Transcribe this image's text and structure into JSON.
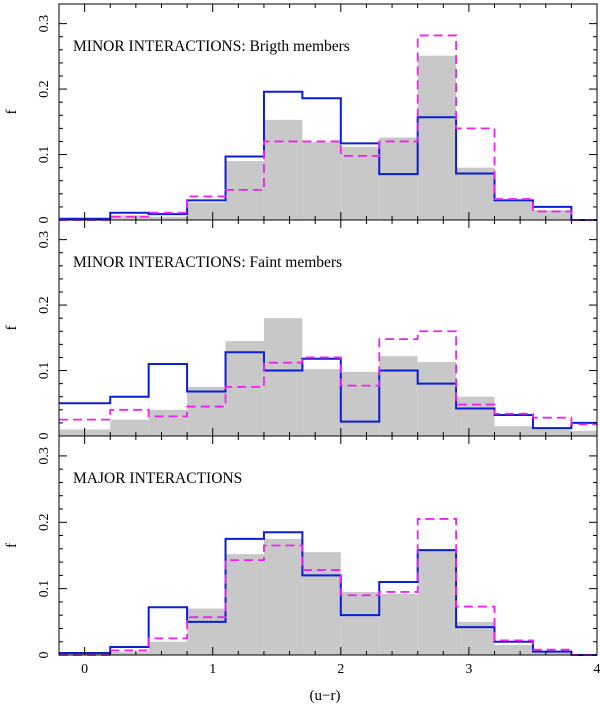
{
  "chart_data": {
    "type": "histogram",
    "xlabel": "(u−r)",
    "ylabel": "f",
    "xlim": [
      -0.2,
      4.0
    ],
    "ylim": [
      0,
      0.33
    ],
    "x_ticks": [
      0,
      1,
      2,
      3,
      4
    ],
    "y_ticks": [
      0,
      0.1,
      0.2,
      0.3
    ],
    "y_tick_labels": [
      "0",
      "0.1",
      "0.2",
      "0.3"
    ],
    "bin_edges": [
      -0.2,
      0.2,
      0.5,
      0.8,
      1.1,
      1.4,
      1.7,
      2.0,
      2.3,
      2.6,
      2.9,
      3.2,
      3.5,
      3.8,
      4.0
    ],
    "series_styles": [
      {
        "name": "gray-filled",
        "style": "filled",
        "color": "#c8c8c8"
      },
      {
        "name": "blue-solid",
        "style": "solid",
        "color": "#0a1ed2"
      },
      {
        "name": "magenta-dashed",
        "style": "dashed",
        "color": "#f020f0"
      }
    ],
    "panels": [
      {
        "title": "MINOR INTERACTIONS: Brigth members",
        "series": [
          {
            "name": "gray-filled",
            "values": [
              0.002,
              0.007,
              0.005,
              0.027,
              0.09,
              0.153,
              0.119,
              0.112,
              0.126,
              0.251,
              0.08,
              0.028,
              0.015,
              0.0
            ]
          },
          {
            "name": "blue-solid",
            "values": [
              0.002,
              0.011,
              0.009,
              0.03,
              0.097,
              0.196,
              0.186,
              0.117,
              0.07,
              0.157,
              0.071,
              0.03,
              0.02,
              0.0
            ]
          },
          {
            "name": "magenta-dashed",
            "values": [
              0.0,
              0.005,
              0.011,
              0.036,
              0.046,
              0.12,
              0.12,
              0.098,
              0.12,
              0.282,
              0.14,
              0.032,
              0.013,
              0.0
            ]
          }
        ]
      },
      {
        "title": "MINOR INTERACTIONS: Faint members",
        "series": [
          {
            "name": "gray-filled",
            "values": [
              0.01,
              0.025,
              0.04,
              0.075,
              0.145,
              0.18,
              0.102,
              0.098,
              0.122,
              0.113,
              0.06,
              0.015,
              0.01,
              0.008
            ]
          },
          {
            "name": "blue-solid",
            "values": [
              0.05,
              0.06,
              0.11,
              0.068,
              0.128,
              0.1,
              0.118,
              0.022,
              0.1,
              0.08,
              0.042,
              0.032,
              0.012,
              0.02
            ]
          },
          {
            "name": "magenta-dashed",
            "values": [
              0.025,
              0.04,
              0.03,
              0.045,
              0.075,
              0.112,
              0.12,
              0.077,
              0.148,
              0.16,
              0.048,
              0.034,
              0.028,
              0.018
            ]
          }
        ]
      },
      {
        "title": "MAJOR INTERACTIONS",
        "series": [
          {
            "name": "gray-filled",
            "values": [
              0.003,
              0.005,
              0.02,
              0.07,
              0.152,
              0.175,
              0.155,
              0.095,
              0.092,
              0.158,
              0.05,
              0.015,
              0.005,
              0.0
            ]
          },
          {
            "name": "blue-solid",
            "values": [
              0.003,
              0.012,
              0.072,
              0.05,
              0.175,
              0.185,
              0.12,
              0.06,
              0.11,
              0.158,
              0.042,
              0.02,
              0.005,
              0.0
            ]
          },
          {
            "name": "magenta-dashed",
            "values": [
              0.0,
              0.007,
              0.025,
              0.057,
              0.143,
              0.165,
              0.128,
              0.09,
              0.095,
              0.205,
              0.073,
              0.022,
              0.008,
              0.0
            ]
          }
        ]
      }
    ]
  }
}
